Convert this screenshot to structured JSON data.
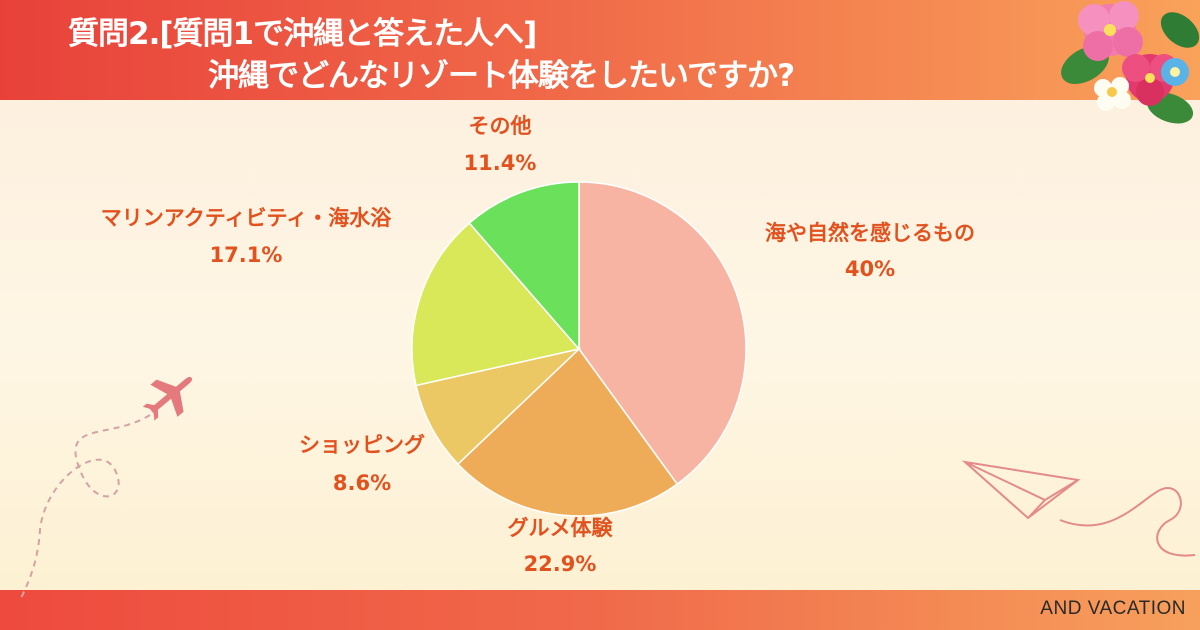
{
  "header": {
    "title_line1": "質問2.[質問1で沖縄と答えた人へ]",
    "title_line2": "沖縄でどんなリゾート体験をしたいですか?"
  },
  "footer": {
    "brand": "AND VACATION"
  },
  "colors": {
    "label": "#e2521f",
    "header_start": "#e8413a",
    "header_end": "#f9a25a"
  },
  "chart_data": {
    "type": "pie",
    "start_angle_deg": 0,
    "direction": "clockwise",
    "slices": [
      {
        "label": "海や自然を感じるもの",
        "value": 40,
        "display": "40%",
        "color": "#f7b4a3"
      },
      {
        "label": "グルメ体験",
        "value": 22.9,
        "display": "22.9%",
        "color": "#efac58"
      },
      {
        "label": "ショッピング",
        "value": 8.6,
        "display": "8.6%",
        "color": "#ecc865"
      },
      {
        "label": "マリンアクティビティ・海水浴",
        "value": 17.1,
        "display": "17.1%",
        "color": "#d8e858"
      },
      {
        "label": "その他",
        "value": 11.4,
        "display": "11.4%",
        "color": "#6be05a"
      }
    ]
  }
}
